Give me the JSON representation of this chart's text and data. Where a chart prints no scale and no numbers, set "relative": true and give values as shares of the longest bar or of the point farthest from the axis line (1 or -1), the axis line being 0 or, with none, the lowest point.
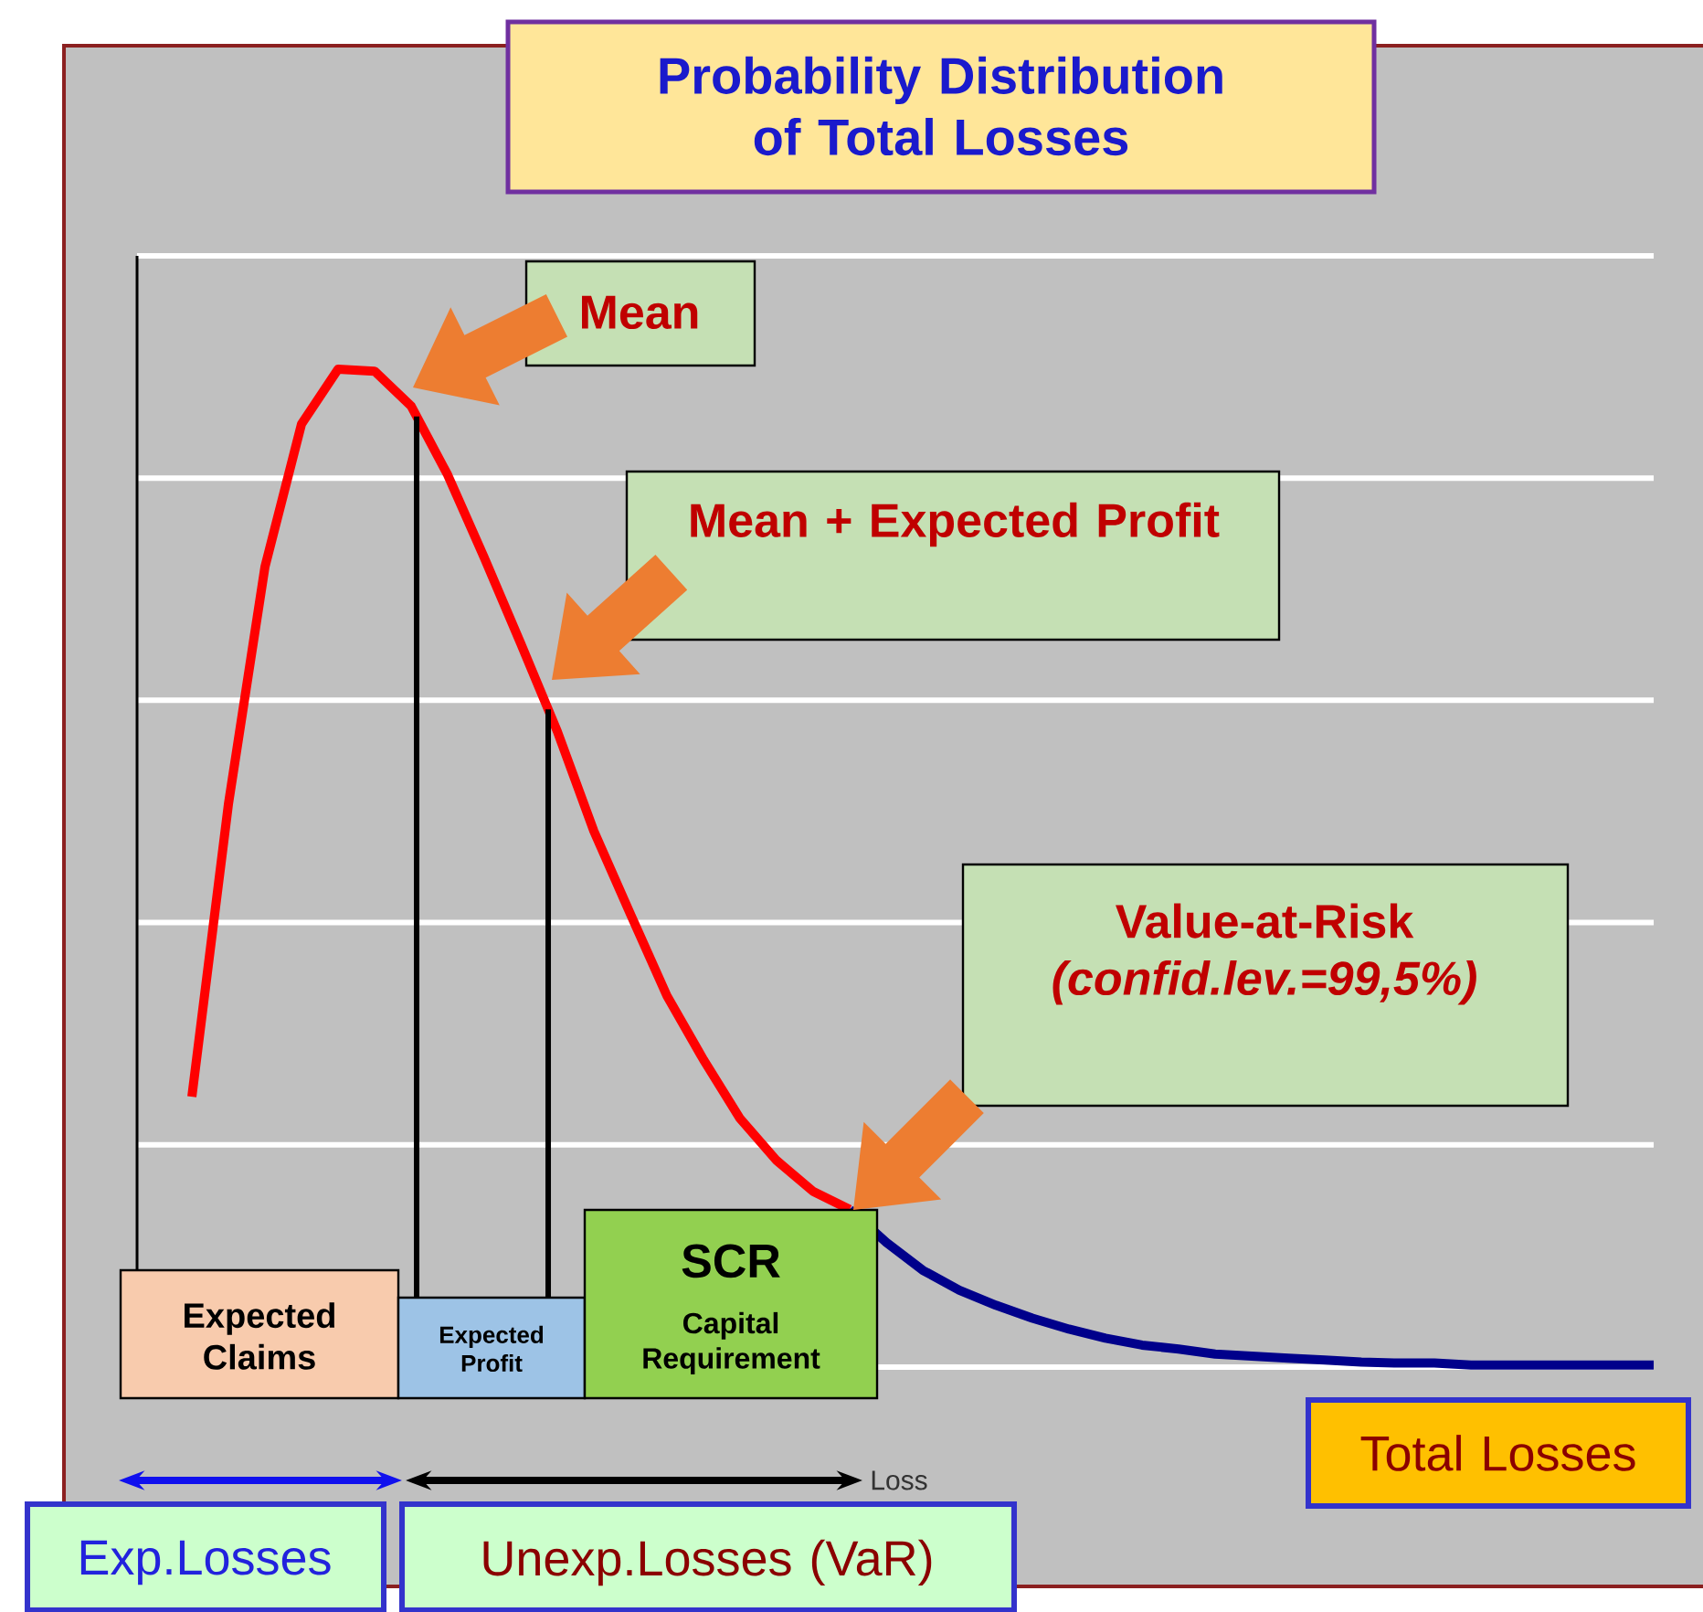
{
  "chart_data": {
    "type": "line",
    "title": "Probability Distribution of Total Losses",
    "relative": true,
    "grid": true,
    "categories": [
      null,
      null,
      null,
      null,
      null,
      null,
      null,
      null,
      null,
      null,
      null,
      null,
      null,
      null,
      null,
      null,
      null,
      null,
      null,
      null,
      null,
      null,
      null,
      null,
      null,
      null,
      null,
      null,
      null,
      null,
      null,
      null,
      null,
      null,
      null,
      null,
      null,
      null,
      null,
      null,
      null,
      null
    ],
    "series": [
      {
        "color": "#ff0000",
        "values": [
          null,
          0.271,
          0.564,
          0.802,
          0.945,
          1,
          0.998,
          0.963,
          0.894,
          0.811,
          0.725,
          0.637,
          0.537,
          0.454,
          0.372,
          0.308,
          0.249,
          0.207,
          0.176,
          0.158,
          null,
          null,
          null,
          null,
          null,
          null,
          null,
          null,
          null,
          null,
          null,
          null,
          null,
          null,
          null,
          null,
          null,
          null,
          null,
          null,
          null,
          null
        ]
      },
      {
        "color": "#00008b",
        "values": [
          null,
          null,
          null,
          null,
          null,
          null,
          null,
          null,
          null,
          null,
          null,
          null,
          null,
          null,
          null,
          null,
          null,
          null,
          null,
          0.158,
          0.125,
          0.097,
          0.077,
          0.062,
          0.049,
          0.038,
          0.029,
          0.022,
          0.018,
          0.013,
          0.011,
          0.009,
          0.007,
          0.005,
          0.004,
          0.004,
          0.002,
          0.002,
          0.002,
          0.002,
          0.002,
          0.002
        ]
      }
    ],
    "annotations": [
      "Mean",
      "Mean + Expected Profit",
      "Value-at-Risk *(confid.lev.=99,5%)*",
      "Expected Claims",
      "Expected Profit",
      "SCR",
      "Capital Requirement",
      "Loss",
      "Exp.Losses",
      "Unexp.Losses (VaR)",
      "Total Losses"
    ]
  }
}
